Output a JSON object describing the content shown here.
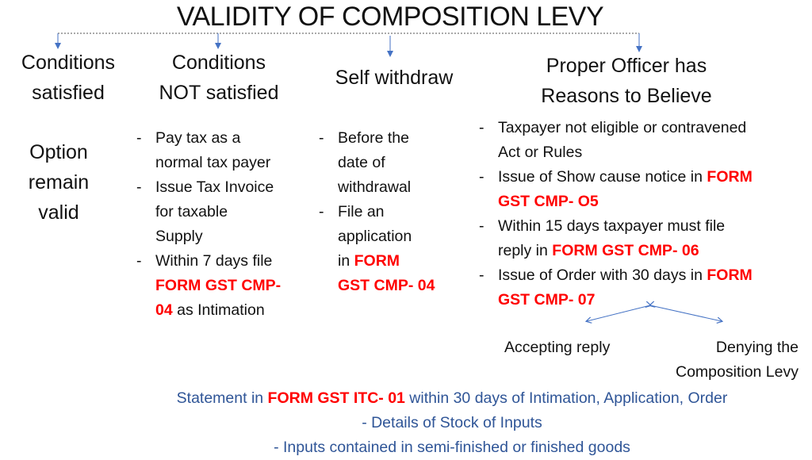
{
  "title": "VALIDITY OF COMPOSITION LEVY",
  "colors": {
    "arrow": "#4472c4",
    "highlight": "#ff0000",
    "footer_text": "#2f5597"
  },
  "columns": [
    {
      "header": [
        "Conditions",
        "satisfied"
      ],
      "body": [
        "Option",
        "remain",
        "valid"
      ]
    },
    {
      "header": [
        "Conditions",
        "NOT satisfied"
      ],
      "items": [
        [
          [
            {
              "t": "Pay tax as a"
            }
          ],
          [
            {
              "t": "normal tax payer"
            }
          ]
        ],
        [
          [
            {
              "t": "Issue Tax Invoice"
            }
          ],
          [
            {
              "t": "for taxable"
            }
          ],
          [
            {
              "t": "Supply"
            }
          ]
        ],
        [
          [
            {
              "t": "Within 7 days file"
            }
          ],
          [
            {
              "t": "FORM GST CMP-",
              "red": true
            }
          ],
          [
            {
              "t": "04",
              "red": true
            },
            {
              "t": " as Intimation"
            }
          ]
        ]
      ]
    },
    {
      "header": [
        "Self withdraw"
      ],
      "items": [
        [
          [
            {
              "t": "Before the"
            }
          ],
          [
            {
              "t": "date of"
            }
          ],
          [
            {
              "t": "withdrawal"
            }
          ]
        ],
        [
          [
            {
              "t": "File an"
            }
          ],
          [
            {
              "t": "application"
            }
          ],
          [
            {
              "t": "in "
            },
            {
              "t": "FORM",
              "red": true
            }
          ],
          [
            {
              "t": "GST CMP- 04",
              "red": true
            }
          ]
        ]
      ]
    },
    {
      "header": [
        "Proper Officer has",
        "Reasons to Believe"
      ],
      "items": [
        [
          [
            {
              "t": "Taxpayer not eligible or contravened"
            }
          ],
          [
            {
              "t": "Act or Rules"
            }
          ]
        ],
        [
          [
            {
              "t": "Issue of Show cause notice in "
            },
            {
              "t": "FORM",
              "red": true
            }
          ],
          [
            {
              "t": "GST CMP- O5",
              "red": true
            }
          ]
        ],
        [
          [
            {
              "t": "Within 15 days taxpayer must file"
            }
          ],
          [
            {
              "t": "reply in "
            },
            {
              "t": "FORM GST CMP- 06",
              "red": true
            }
          ]
        ],
        [
          [
            {
              "t": "Issue of Order with 30 days in "
            },
            {
              "t": "FORM",
              "red": true
            }
          ],
          [
            {
              "t": "GST CMP- 07",
              "red": true
            }
          ]
        ]
      ]
    }
  ],
  "outcomes": {
    "accept": "Accepting reply",
    "deny": [
      "Denying the",
      "Composition Levy"
    ]
  },
  "footer": {
    "line1": [
      {
        "t": "Statement in "
      },
      {
        "t": "FORM GST ITC- 01",
        "red": true
      },
      {
        "t": " within 30 days of Intimation, Application, Order"
      }
    ],
    "line2": "- Details of Stock of Inputs",
    "line3": "- Inputs contained in semi-finished or finished goods"
  },
  "dash": "-"
}
